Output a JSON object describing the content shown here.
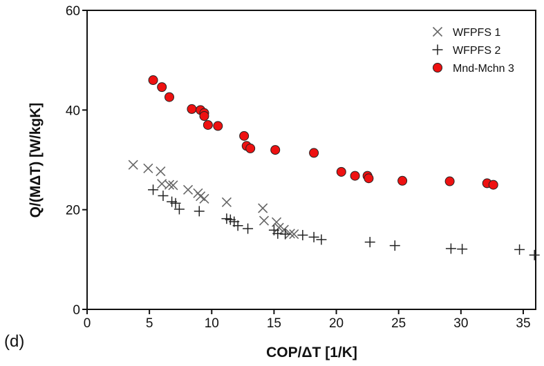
{
  "panel_label": "(d)",
  "chart_data": {
    "type": "scatter",
    "title": "",
    "xlabel": "COP/ΔT [1/K]",
    "ylabel": "Q/(MΔT) [W/kgK]",
    "xlim": [
      0,
      36
    ],
    "ylim": [
      0,
      60
    ],
    "x_ticks": [
      "0",
      "5",
      "10",
      "15",
      "20",
      "25",
      "30",
      "35"
    ],
    "y_ticks": [
      "0",
      "20",
      "40",
      "60"
    ],
    "grid": false,
    "legend_position": "top-right",
    "series": [
      {
        "name": "WFPFS 1",
        "marker": "x",
        "color": "#666666",
        "points": [
          [
            3.7,
            29.0
          ],
          [
            4.9,
            28.3
          ],
          [
            5.9,
            27.7
          ],
          [
            6.0,
            25.2
          ],
          [
            6.6,
            25.0
          ],
          [
            6.9,
            24.9
          ],
          [
            8.1,
            24.0
          ],
          [
            8.9,
            23.3
          ],
          [
            9.1,
            22.7
          ],
          [
            9.4,
            22.2
          ],
          [
            11.2,
            21.5
          ],
          [
            14.1,
            20.3
          ],
          [
            14.2,
            17.8
          ],
          [
            15.2,
            17.5
          ],
          [
            15.4,
            16.4
          ],
          [
            15.8,
            16.0
          ],
          [
            16.3,
            15.2
          ],
          [
            16.6,
            15.1
          ]
        ]
      },
      {
        "name": "WFPFS 2",
        "marker": "+",
        "color": "#222222",
        "points": [
          [
            5.3,
            24.0
          ],
          [
            6.1,
            22.8
          ],
          [
            6.8,
            21.6
          ],
          [
            7.1,
            21.3
          ],
          [
            7.4,
            20.1
          ],
          [
            9.0,
            19.7
          ],
          [
            11.2,
            18.2
          ],
          [
            11.5,
            18.0
          ],
          [
            11.8,
            17.6
          ],
          [
            12.1,
            16.8
          ],
          [
            12.9,
            16.2
          ],
          [
            15.0,
            15.9
          ],
          [
            15.3,
            15.2
          ],
          [
            15.9,
            15.1
          ],
          [
            17.3,
            14.9
          ],
          [
            18.2,
            14.5
          ],
          [
            18.8,
            14.0
          ],
          [
            22.7,
            13.5
          ],
          [
            24.7,
            12.8
          ],
          [
            29.2,
            12.2
          ],
          [
            30.1,
            12.1
          ],
          [
            34.7,
            12.0
          ],
          [
            35.9,
            10.9
          ]
        ]
      },
      {
        "name": "Mnd-Mchn 3",
        "marker": "circle",
        "color": "#ee1111",
        "points": [
          [
            5.3,
            46.0
          ],
          [
            6.0,
            44.6
          ],
          [
            6.6,
            42.6
          ],
          [
            8.4,
            40.2
          ],
          [
            9.1,
            40.0
          ],
          [
            9.4,
            39.4
          ],
          [
            9.4,
            38.8
          ],
          [
            9.7,
            37.0
          ],
          [
            10.5,
            36.8
          ],
          [
            12.6,
            34.8
          ],
          [
            12.8,
            32.8
          ],
          [
            13.1,
            32.3
          ],
          [
            15.1,
            32.0
          ],
          [
            18.2,
            31.4
          ],
          [
            20.4,
            27.6
          ],
          [
            21.5,
            26.8
          ],
          [
            22.5,
            26.8
          ],
          [
            22.6,
            26.3
          ],
          [
            25.3,
            25.8
          ],
          [
            29.1,
            25.7
          ],
          [
            32.1,
            25.3
          ],
          [
            32.6,
            25.0
          ]
        ]
      }
    ]
  }
}
